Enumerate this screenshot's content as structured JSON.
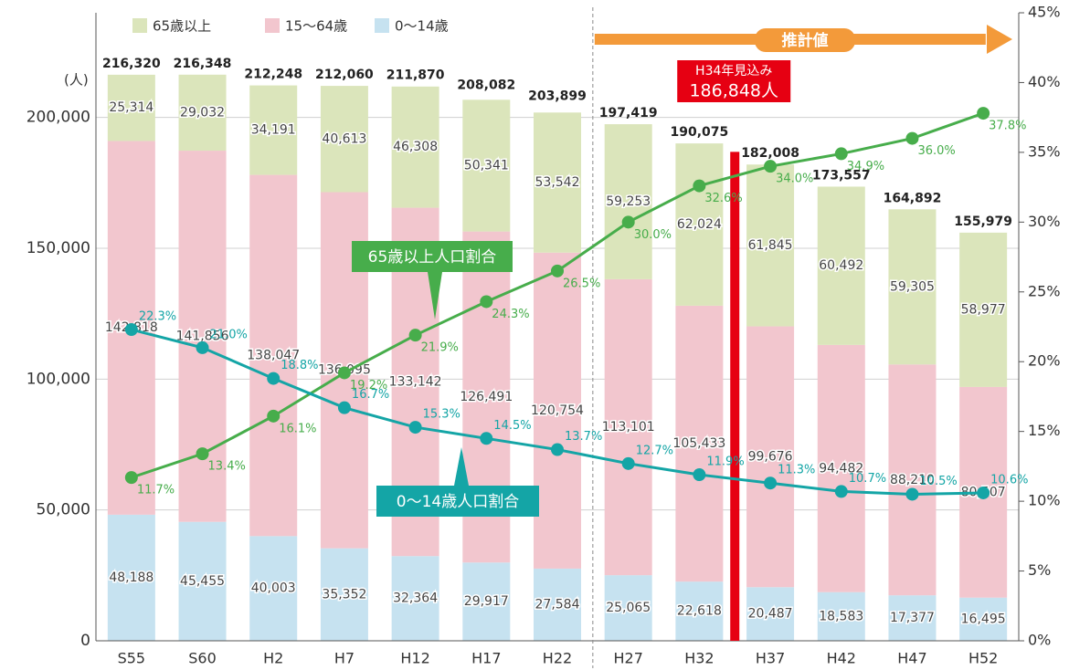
{
  "chart_data": {
    "type": "bar",
    "y_unit": "(人)",
    "categories": [
      "S55",
      "S60",
      "H2",
      "H7",
      "H12",
      "H17",
      "H22",
      "H27",
      "H32",
      "H37",
      "H42",
      "H47",
      "H52"
    ],
    "ylim": [
      0,
      240000
    ],
    "yticks": [
      0,
      {
        "value": 50000,
        "label": "50,000"
      },
      {
        "value": 100000,
        "label": "100,000"
      },
      {
        "value": 150000,
        "label": "150,000"
      },
      {
        "value": 200000,
        "label": "200,000"
      }
    ],
    "y2lim": [
      0,
      45
    ],
    "y2ticks": [
      {
        "value": 0,
        "label": "0%"
      },
      {
        "value": 5,
        "label": "5%"
      },
      {
        "value": 10,
        "label": "10%"
      },
      {
        "value": 15,
        "label": "15%"
      },
      {
        "value": 20,
        "label": "20%"
      },
      {
        "value": 25,
        "label": "25%"
      },
      {
        "value": 30,
        "label": "30%"
      },
      {
        "value": 35,
        "label": "35%"
      },
      {
        "value": 40,
        "label": "40%"
      },
      {
        "value": 45,
        "label": "45%"
      }
    ],
    "grid": true,
    "series": [
      {
        "name": "0〜14歳",
        "color": "#c6e2f0",
        "values": [
          48188,
          45455,
          40003,
          35352,
          32364,
          29917,
          27584,
          25065,
          22618,
          20487,
          18583,
          17377,
          16495
        ],
        "value_labels": [
          "48,188",
          "45,455",
          "40,003",
          "35,352",
          "32,364",
          "29,917",
          "27,584",
          "25,065",
          "22,618",
          "20,487",
          "18,583",
          "17,377",
          "16,495"
        ]
      },
      {
        "name": "15〜64歳",
        "color": "#f2c6ce",
        "values": [
          142818,
          141856,
          138047,
          136095,
          133142,
          126491,
          120754,
          113101,
          105433,
          99676,
          94482,
          88210,
          80507
        ],
        "value_labels": [
          "142,818",
          "141,856",
          "138,047",
          "136,095",
          "133,142",
          "126,491",
          "120,754",
          "113,101",
          "105,433",
          "99,676",
          "94,482",
          "88,210",
          "80,507"
        ]
      },
      {
        "name": "65歳以上",
        "color": "#dbe5bb",
        "values": [
          25314,
          29032,
          34191,
          40613,
          46308,
          50341,
          53542,
          59253,
          62024,
          61845,
          60492,
          59305,
          58977
        ],
        "value_labels": [
          "25,314",
          "29,032",
          "34,191",
          "40,613",
          "46,308",
          "50,341",
          "53,542",
          "59,253",
          "62,024",
          "61,845",
          "60,492",
          "59,305",
          "58,977"
        ]
      }
    ],
    "totals": [
      216320,
      216348,
      212248,
      212060,
      211870,
      208082,
      203899,
      197419,
      190075,
      182008,
      173557,
      164892,
      155979
    ],
    "total_labels": [
      "216,320",
      "216,348",
      "212,248",
      "212,060",
      "211,870",
      "208,082",
      "203,899",
      "197,419",
      "190,075",
      "182,008",
      "173,557",
      "164,892",
      "155,979"
    ],
    "line_series": [
      {
        "name": "65歳以上人口割合",
        "color": "#47ad4b",
        "axis": "y2",
        "values": [
          11.7,
          13.4,
          16.1,
          19.2,
          21.9,
          24.3,
          26.5,
          30.0,
          32.6,
          34.0,
          34.9,
          36.0,
          37.8
        ],
        "value_labels": [
          "11.7%",
          "13.4%",
          "16.1%",
          "19.2%",
          "21.9%",
          "24.3%",
          "26.5%",
          "30.0%",
          "32.6%",
          "34.0%",
          "34.9%",
          "36.0%",
          "37.8%"
        ]
      },
      {
        "name": "0〜14歳人口割合",
        "color": "#14a5a6",
        "axis": "y2",
        "values": [
          22.3,
          21.0,
          18.8,
          16.7,
          15.3,
          14.5,
          13.7,
          12.7,
          11.9,
          11.3,
          10.7,
          10.5,
          10.6
        ],
        "value_labels": [
          "22.3%",
          "21.0%",
          "18.8%",
          "16.7%",
          "15.3%",
          "14.5%",
          "13.7%",
          "12.7%",
          "11.9%",
          "11.3%",
          "10.7%",
          "10.5%",
          "10.6%"
        ]
      }
    ],
    "projection_label": "推計値",
    "marker": {
      "label": "H34年見込み",
      "value": 186848,
      "value_label": "186,848人",
      "color": "#e60012"
    }
  }
}
